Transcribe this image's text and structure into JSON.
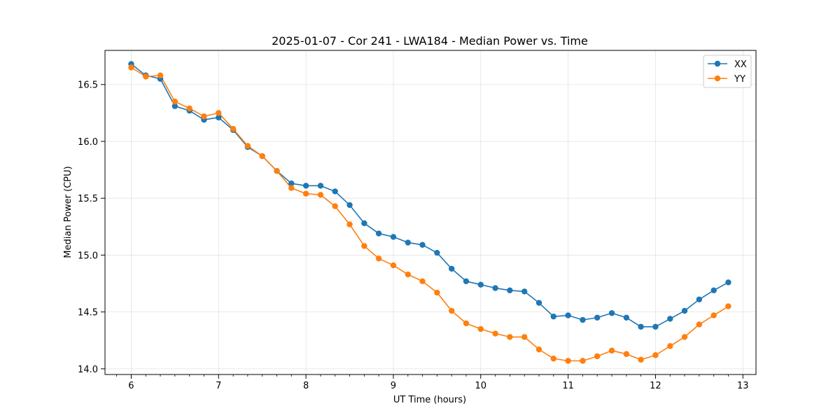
{
  "chart_data": {
    "type": "line",
    "title": "2025-01-07 - Cor 241 - LWA184 - Median Power vs. Time",
    "xlabel": "UT Time (hours)",
    "ylabel": "Median Power (CPU)",
    "xlim": [
      5.7,
      13.15
    ],
    "ylim": [
      13.95,
      16.8
    ],
    "xticks": [
      6,
      7,
      8,
      9,
      10,
      11,
      12,
      13
    ],
    "xtick_labels": [
      "6",
      "7",
      "8",
      "9",
      "10",
      "11",
      "12",
      "13"
    ],
    "yticks": [
      14.0,
      14.5,
      15.0,
      15.5,
      16.0,
      16.5
    ],
    "ytick_labels": [
      "14.0",
      "14.5",
      "15.0",
      "15.5",
      "16.0",
      "16.5"
    ],
    "grid": true,
    "legend_position": "top-right",
    "x": [
      6.0,
      6.167,
      6.333,
      6.5,
      6.667,
      6.833,
      7.0,
      7.167,
      7.333,
      7.5,
      7.667,
      7.833,
      8.0,
      8.167,
      8.333,
      8.5,
      8.667,
      8.833,
      9.0,
      9.167,
      9.333,
      9.5,
      9.667,
      9.833,
      10.0,
      10.167,
      10.333,
      10.5,
      10.667,
      10.833,
      11.0,
      11.167,
      11.333,
      11.5,
      11.667,
      11.833,
      12.0,
      12.167,
      12.333,
      12.5,
      12.667,
      12.833
    ],
    "series": [
      {
        "name": "XX",
        "color": "#1f77b4",
        "values": [
          16.68,
          16.58,
          16.55,
          16.31,
          16.27,
          16.19,
          16.21,
          16.1,
          15.95,
          15.87,
          15.74,
          15.63,
          15.61,
          15.61,
          15.56,
          15.44,
          15.28,
          15.19,
          15.16,
          15.11,
          15.09,
          15.02,
          14.88,
          14.77,
          14.74,
          14.71,
          14.69,
          14.68,
          14.58,
          14.46,
          14.47,
          14.43,
          14.45,
          14.49,
          14.45,
          14.37,
          14.37,
          14.44,
          14.51,
          14.61,
          14.69,
          14.76
        ]
      },
      {
        "name": "YY",
        "color": "#ff7f0e",
        "values": [
          16.65,
          16.57,
          16.58,
          16.35,
          16.29,
          16.22,
          16.25,
          16.11,
          15.96,
          15.87,
          15.74,
          15.59,
          15.54,
          15.53,
          15.43,
          15.27,
          15.08,
          14.97,
          14.91,
          14.83,
          14.77,
          14.67,
          14.51,
          14.4,
          14.35,
          14.31,
          14.28,
          14.28,
          14.17,
          14.09,
          14.07,
          14.07,
          14.11,
          14.16,
          14.13,
          14.08,
          14.12,
          14.2,
          14.28,
          14.39,
          14.47,
          14.55
        ]
      }
    ]
  }
}
